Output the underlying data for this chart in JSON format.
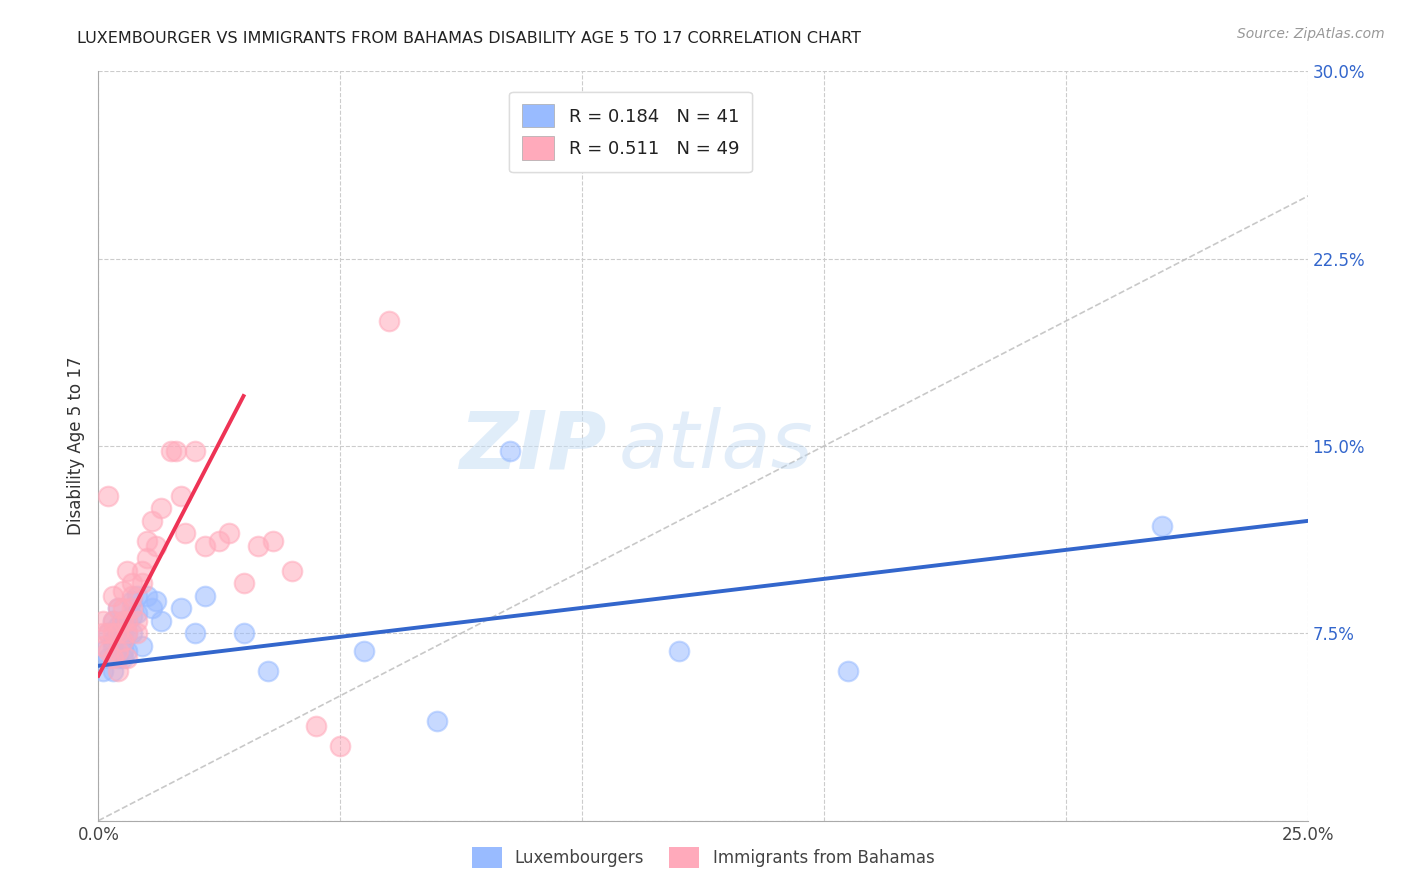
{
  "title": "LUXEMBOURGER VS IMMIGRANTS FROM BAHAMAS DISABILITY AGE 5 TO 17 CORRELATION CHART",
  "source": "Source: ZipAtlas.com",
  "ylabel": "Disability Age 5 to 17",
  "xlim": [
    0.0,
    0.25
  ],
  "ylim": [
    0.0,
    0.3
  ],
  "xticks": [
    0.0,
    0.05,
    0.1,
    0.15,
    0.2,
    0.25
  ],
  "xticklabels": [
    "0.0%",
    "",
    "",
    "",
    "",
    "25.0%"
  ],
  "yticks": [
    0.0,
    0.075,
    0.15,
    0.225,
    0.3
  ],
  "yticklabels": [
    "",
    "7.5%",
    "15.0%",
    "22.5%",
    "30.0%"
  ],
  "grid_color": "#cccccc",
  "watermark_zip": "ZIP",
  "watermark_atlas": "atlas",
  "legend_label1": "R = 0.184   N = 41",
  "legend_label2": "R = 0.511   N = 49",
  "bottom_label1": "Luxembourgers",
  "bottom_label2": "Immigrants from Bahamas",
  "blue_scatter_color": "#99bbff",
  "pink_scatter_color": "#ffaabb",
  "blue_line_color": "#3366cc",
  "pink_line_color": "#ee3355",
  "diag_color": "#bbbbbb",
  "lux_x": [
    0.001,
    0.001,
    0.002,
    0.002,
    0.003,
    0.003,
    0.003,
    0.003,
    0.004,
    0.004,
    0.004,
    0.004,
    0.005,
    0.005,
    0.005,
    0.005,
    0.005,
    0.006,
    0.006,
    0.006,
    0.007,
    0.007,
    0.007,
    0.008,
    0.008,
    0.009,
    0.01,
    0.011,
    0.012,
    0.013,
    0.017,
    0.02,
    0.022,
    0.03,
    0.035,
    0.055,
    0.07,
    0.085,
    0.12,
    0.155,
    0.22
  ],
  "lux_y": [
    0.068,
    0.06,
    0.075,
    0.065,
    0.07,
    0.08,
    0.072,
    0.06,
    0.075,
    0.085,
    0.065,
    0.078,
    0.068,
    0.072,
    0.065,
    0.075,
    0.08,
    0.08,
    0.068,
    0.075,
    0.088,
    0.082,
    0.075,
    0.09,
    0.083,
    0.07,
    0.09,
    0.085,
    0.088,
    0.08,
    0.085,
    0.075,
    0.09,
    0.075,
    0.06,
    0.068,
    0.04,
    0.148,
    0.068,
    0.06,
    0.118
  ],
  "bah_x": [
    0.001,
    0.001,
    0.001,
    0.002,
    0.002,
    0.002,
    0.003,
    0.003,
    0.003,
    0.003,
    0.004,
    0.004,
    0.004,
    0.004,
    0.005,
    0.005,
    0.005,
    0.005,
    0.006,
    0.006,
    0.006,
    0.006,
    0.007,
    0.007,
    0.007,
    0.008,
    0.008,
    0.009,
    0.009,
    0.01,
    0.01,
    0.011,
    0.012,
    0.013,
    0.015,
    0.016,
    0.017,
    0.018,
    0.02,
    0.022,
    0.025,
    0.027,
    0.03,
    0.033,
    0.036,
    0.04,
    0.045,
    0.05,
    0.06
  ],
  "bah_y": [
    0.07,
    0.075,
    0.08,
    0.068,
    0.075,
    0.13,
    0.065,
    0.075,
    0.08,
    0.09,
    0.068,
    0.075,
    0.085,
    0.06,
    0.072,
    0.08,
    0.085,
    0.092,
    0.075,
    0.08,
    0.1,
    0.065,
    0.09,
    0.095,
    0.085,
    0.08,
    0.075,
    0.1,
    0.095,
    0.105,
    0.112,
    0.12,
    0.11,
    0.125,
    0.148,
    0.148,
    0.13,
    0.115,
    0.148,
    0.11,
    0.112,
    0.115,
    0.095,
    0.11,
    0.112,
    0.1,
    0.038,
    0.03,
    0.2
  ],
  "blue_line_x0": 0.0,
  "blue_line_x1": 0.25,
  "blue_line_y0": 0.062,
  "blue_line_y1": 0.12,
  "pink_line_x0": 0.0,
  "pink_line_x1": 0.03,
  "pink_line_y0": 0.058,
  "pink_line_y1": 0.17
}
